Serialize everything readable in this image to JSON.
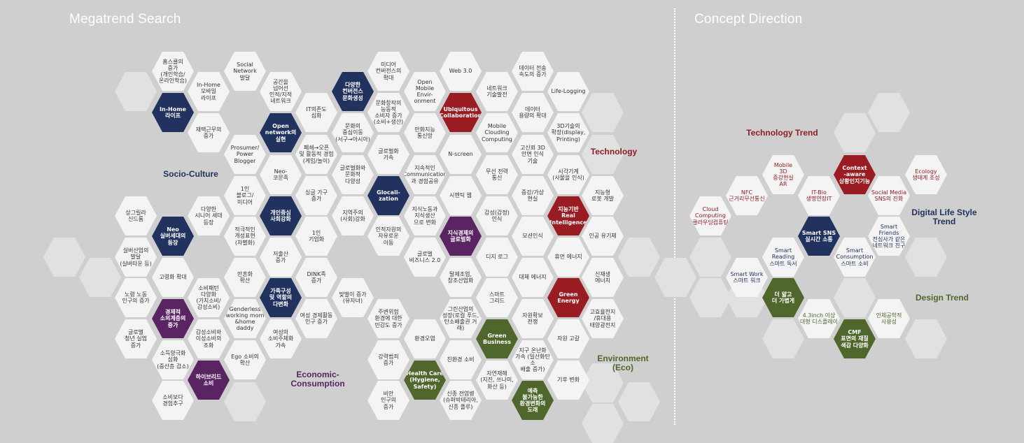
{
  "headers": {
    "left": "Megatrend Search",
    "right": "Concept Direction"
  },
  "colors": {
    "background": "#cfcfd0",
    "white_hex": "#f4f4f5",
    "light_hex": "#e1e1e2",
    "navy": "#22325e",
    "red": "#9a1c23",
    "purple": "#5a2463",
    "green": "#4f672c"
  },
  "categories": {
    "socio": "Socio-Culture",
    "economic": "Economic-\nConsumption",
    "technology": "Technology",
    "environment": "Environment\n(Eco)",
    "tech_trend": "Technology Trend",
    "digital": "Digital Life Style\nTrend",
    "design": "Design Trend"
  },
  "cells": [
    {
      "id": "a1",
      "text": "홈스쿨의\n증가\n(개인학습/\n온라인학습)"
    },
    {
      "id": "a2",
      "text": "In-Home\n모바일\n라이프"
    },
    {
      "id": "a3",
      "text": "Social\nNetwork\n발달"
    },
    {
      "id": "a4",
      "text": "In-Home\n라이프"
    },
    {
      "id": "a5",
      "text": "재택근무의\n증가"
    },
    {
      "id": "a6",
      "text": "공간을\n넘어선\n인적/지적\n네트워크"
    },
    {
      "id": "a7",
      "text": "IT의존도\n심화"
    },
    {
      "id": "a8",
      "text": "다양한\n컨버전스\n문화생성"
    },
    {
      "id": "a9",
      "text": "미디어\n컨버전스의\n확대"
    },
    {
      "id": "a10",
      "text": "Open\nMobile\nEnvir-\nonment"
    },
    {
      "id": "a11",
      "text": "Web 3.0"
    },
    {
      "id": "a12",
      "text": "네트워크\n기술발전"
    },
    {
      "id": "a13",
      "text": "데이터 전송\n속도의 증가"
    },
    {
      "id": "a14",
      "text": "Life-Logging"
    },
    {
      "id": "a15",
      "text": "Prosumer/\nPower\nBlogger"
    },
    {
      "id": "a16",
      "text": "Open\nnetwork의\n실현"
    },
    {
      "id": "a17",
      "text": "폐쇄→오픈\n및 활동적 경험\n(게임/놀이)"
    },
    {
      "id": "a18",
      "text": "문화의\n중심이동\n(서구→아시아)"
    },
    {
      "id": "a19",
      "text": "문화창작의\n능동적\n소비자 증가\n(소비+생산)"
    },
    {
      "id": "a20",
      "text": "Ubiquitous\nCollaboration"
    },
    {
      "id": "a21",
      "text": "데이터\n용량의 확대"
    },
    {
      "id": "a22",
      "text": "3D기술의\n확장(display,\nPrinting)"
    },
    {
      "id": "a23",
      "text": "Neo-\n코문족"
    },
    {
      "id": "a24",
      "text": "글로벌화\n가속"
    },
    {
      "id": "a25",
      "text": "만화지능\n통신망"
    },
    {
      "id": "a26",
      "text": "Mobile\nClouding\nComputing"
    },
    {
      "id": "a27",
      "text": "N-screen"
    },
    {
      "id": "a28",
      "text": "고신뢰 3D\n안면 인식\n기술"
    },
    {
      "id": "a29",
      "text": "1인\n블로그/\n미디어"
    },
    {
      "id": "a30",
      "text": "싱글 가구\n증가"
    },
    {
      "id": "a31",
      "text": "글로벌화와\n문화적\n다양성"
    },
    {
      "id": "a32",
      "text": "지속적인\nCommunication\n과 경험공유"
    },
    {
      "id": "a33",
      "text": "무선 전력\n통신"
    },
    {
      "id": "a34",
      "text": "시각기계\n(사물을 인식)"
    },
    {
      "id": "a35",
      "text": "다양한\n시니어 세대\n등장"
    },
    {
      "id": "a36",
      "text": "개인중심\n사회강화"
    },
    {
      "id": "a37",
      "text": "Glocali-\nzation"
    },
    {
      "id": "a38",
      "text": "시멘틱 웹"
    },
    {
      "id": "a39",
      "text": "증강/가상\n현실"
    },
    {
      "id": "a40",
      "text": "지능형\n로봇 개발"
    },
    {
      "id": "a41",
      "text": "상그릴라\n신드롬"
    },
    {
      "id": "a42",
      "text": "적극적인\n개성표현\n(차별화)"
    },
    {
      "id": "a43",
      "text": "지역주의\n(사회)강화"
    },
    {
      "id": "a44",
      "text": "지식노동과\n지식생산\n으로 변화"
    },
    {
      "id": "a45",
      "text": "감성(감정)\n인식"
    },
    {
      "id": "a46",
      "text": "지능기반\nReal\nIntelligence"
    },
    {
      "id": "a47",
      "text": "Neo\n실버세대의\n등장"
    },
    {
      "id": "a48",
      "text": "1인\n기업화"
    },
    {
      "id": "a49",
      "text": "인적자원의\n자유로운\n이동"
    },
    {
      "id": "a50",
      "text": "지식경제의\n글로벌화"
    },
    {
      "id": "a51",
      "text": "모션인식"
    },
    {
      "id": "a52",
      "text": "인공 유기체"
    },
    {
      "id": "a53",
      "text": "실버산업의\n발달\n(실버타운 등)"
    },
    {
      "id": "a54",
      "text": "저출산\n증가"
    },
    {
      "id": "a55",
      "text": "글로벌\n비즈니스 2.0"
    },
    {
      "id": "a56",
      "text": "디지 로그"
    },
    {
      "id": "a57",
      "text": "휴먼 에너지"
    },
    {
      "id": "a58",
      "text": "고령화 확대"
    },
    {
      "id": "a59",
      "text": "만혼화\n확산"
    },
    {
      "id": "a60",
      "text": "DINK족\n증가"
    },
    {
      "id": "a61",
      "text": "탈제조업,\n창조산업화"
    },
    {
      "id": "a62",
      "text": "대체 에너지"
    },
    {
      "id": "a63",
      "text": "신재생\n에너지"
    },
    {
      "id": "a64",
      "text": "소비패턴\n다양화\n(가치소비/\n감성소비)"
    },
    {
      "id": "a65",
      "text": "가족구성\n및 역할의\n다변화"
    },
    {
      "id": "a66",
      "text": "맞벌이 증가\n(유자녀)"
    },
    {
      "id": "a67",
      "text": "스마트\n그리드"
    },
    {
      "id": "a68",
      "text": "Green\nEnergy"
    },
    {
      "id": "a69",
      "text": "노령 노동\n인구의 증가"
    },
    {
      "id": "a70",
      "text": "Genderless\nworking mom\n&home daddy"
    },
    {
      "id": "a71",
      "text": "여성 경제활동\n인구 증가"
    },
    {
      "id": "a72",
      "text": "주변위험\n환경에 대한\n민감도 증가"
    },
    {
      "id": "a73",
      "text": "그린산업의\n성장(로컬 푸드,\n탄소배출권 거래)"
    },
    {
      "id": "a74",
      "text": "자원확보\n전쟁"
    },
    {
      "id": "a75",
      "text": "고효율전지\n/휴대용\n태양광전지"
    },
    {
      "id": "a76",
      "text": "경제적\n소외계층의\n증가"
    },
    {
      "id": "a77",
      "text": "감성소비와\n이성소비의\n조화"
    },
    {
      "id": "a78",
      "text": "여성의\n소비주체화\n가속"
    },
    {
      "id": "a79",
      "text": "환경오염"
    },
    {
      "id": "a80",
      "text": "Green\nBusiness"
    },
    {
      "id": "a81",
      "text": "자원 고갈"
    },
    {
      "id": "a82",
      "text": "글로벌\n청년 실업\n증가"
    },
    {
      "id": "a83",
      "text": "Ego 소비의\n확산"
    },
    {
      "id": "a84",
      "text": "강력범죄\n증가"
    },
    {
      "id": "a85",
      "text": "친환경 소비"
    },
    {
      "id": "a86",
      "text": "지구 온난화\n가속 (일산화탄소\n배출 증가)"
    },
    {
      "id": "a87",
      "text": "소득양극화\n심화\n(중산층 감소)"
    },
    {
      "id": "a88",
      "text": "하이브리드\n소비"
    },
    {
      "id": "a89",
      "text": "Health Care\n(Hygiene, Safety)"
    },
    {
      "id": "a90",
      "text": "자연재해\n(지진, 쓰나미,\n화산 등)"
    },
    {
      "id": "a91",
      "text": "기후 변화"
    },
    {
      "id": "a92",
      "text": "소비보다\n경험추구"
    },
    {
      "id": "a93",
      "text": "비만\n인구의\n증가"
    },
    {
      "id": "a94",
      "text": "신종 전염병\n(슈퍼박테리아,\n신종 플루)"
    },
    {
      "id": "a95",
      "text": "예측\n불가능한\n환경변화의\n도래"
    },
    {
      "id": "b1",
      "text": "Context\n-aware\n상황인지기능"
    },
    {
      "id": "b2",
      "text": "Mobile\n3D\n증강현실\nAR"
    },
    {
      "id": "b3",
      "text": "Ecology\n생태계 조성"
    },
    {
      "id": "b4",
      "text": "NFC\n근거리무선통신"
    },
    {
      "id": "b5",
      "text": "IT-Bio\n생명연장IT"
    },
    {
      "id": "b6",
      "text": "Social Media\nSNS의 진화"
    },
    {
      "id": "b7",
      "text": "Cloud\nComputing\n클라우딩컴퓨팅"
    },
    {
      "id": "b8",
      "text": "Smart SNS\n실시간 소통"
    },
    {
      "id": "b9",
      "text": "Smart\nFriends\n전심사가 같은\n네트워크 친구"
    },
    {
      "id": "b10",
      "text": "Smart\nReading\n스마트 독서"
    },
    {
      "id": "b11",
      "text": "Smart\nConsumption\n스마트 소비"
    },
    {
      "id": "b12",
      "text": "Smart Work\n스마트 워크"
    },
    {
      "id": "b13",
      "text": "더 얇고\n더 가볍게"
    },
    {
      "id": "b14",
      "text": "4.3inch 이상\n대형 디스플레이"
    },
    {
      "id": "b15",
      "text": "인체공학적\n사용성"
    },
    {
      "id": "b16",
      "text": "CMF\n표면의 재질\n색감 다양화"
    }
  ]
}
